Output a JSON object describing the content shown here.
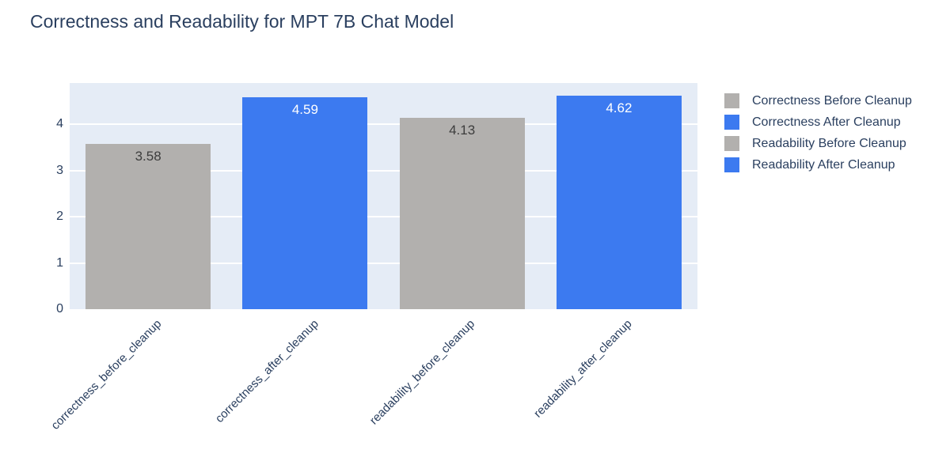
{
  "figure": {
    "background": "#ffffff",
    "plot_background": "#e5ecf6",
    "grid_color": "#ffffff",
    "text_color": "#2a3f5f"
  },
  "chart_data": {
    "type": "bar",
    "title": "Correctness and Readability for MPT 7B Chat Model",
    "categories": [
      "correctness_before_cleanup",
      "correctness_after_cleanup",
      "readability_before_cleanup",
      "readability_after_cleanup"
    ],
    "series": [
      {
        "name": "Correctness Before Cleanup",
        "category": "correctness_before_cleanup",
        "value": 3.58,
        "value_label": "3.58",
        "color": "#b2b0ae",
        "value_label_color": "#3d3d3d"
      },
      {
        "name": "Correctness After Cleanup",
        "category": "correctness_after_cleanup",
        "value": 4.59,
        "value_label": "4.59",
        "color": "#3c7af0",
        "value_label_color": "#ffffff"
      },
      {
        "name": "Readability Before Cleanup",
        "category": "readability_before_cleanup",
        "value": 4.13,
        "value_label": "4.13",
        "color": "#b2b0ae",
        "value_label_color": "#3d3d3d"
      },
      {
        "name": "Readability After Cleanup",
        "category": "readability_after_cleanup",
        "value": 4.62,
        "value_label": "4.62",
        "color": "#3c7af0",
        "value_label_color": "#ffffff"
      }
    ],
    "xlabel": "",
    "ylabel": "",
    "yticks": [
      0,
      1,
      2,
      3,
      4
    ],
    "ylim": [
      0,
      4.89
    ],
    "grid": true,
    "legend_position": "right"
  }
}
